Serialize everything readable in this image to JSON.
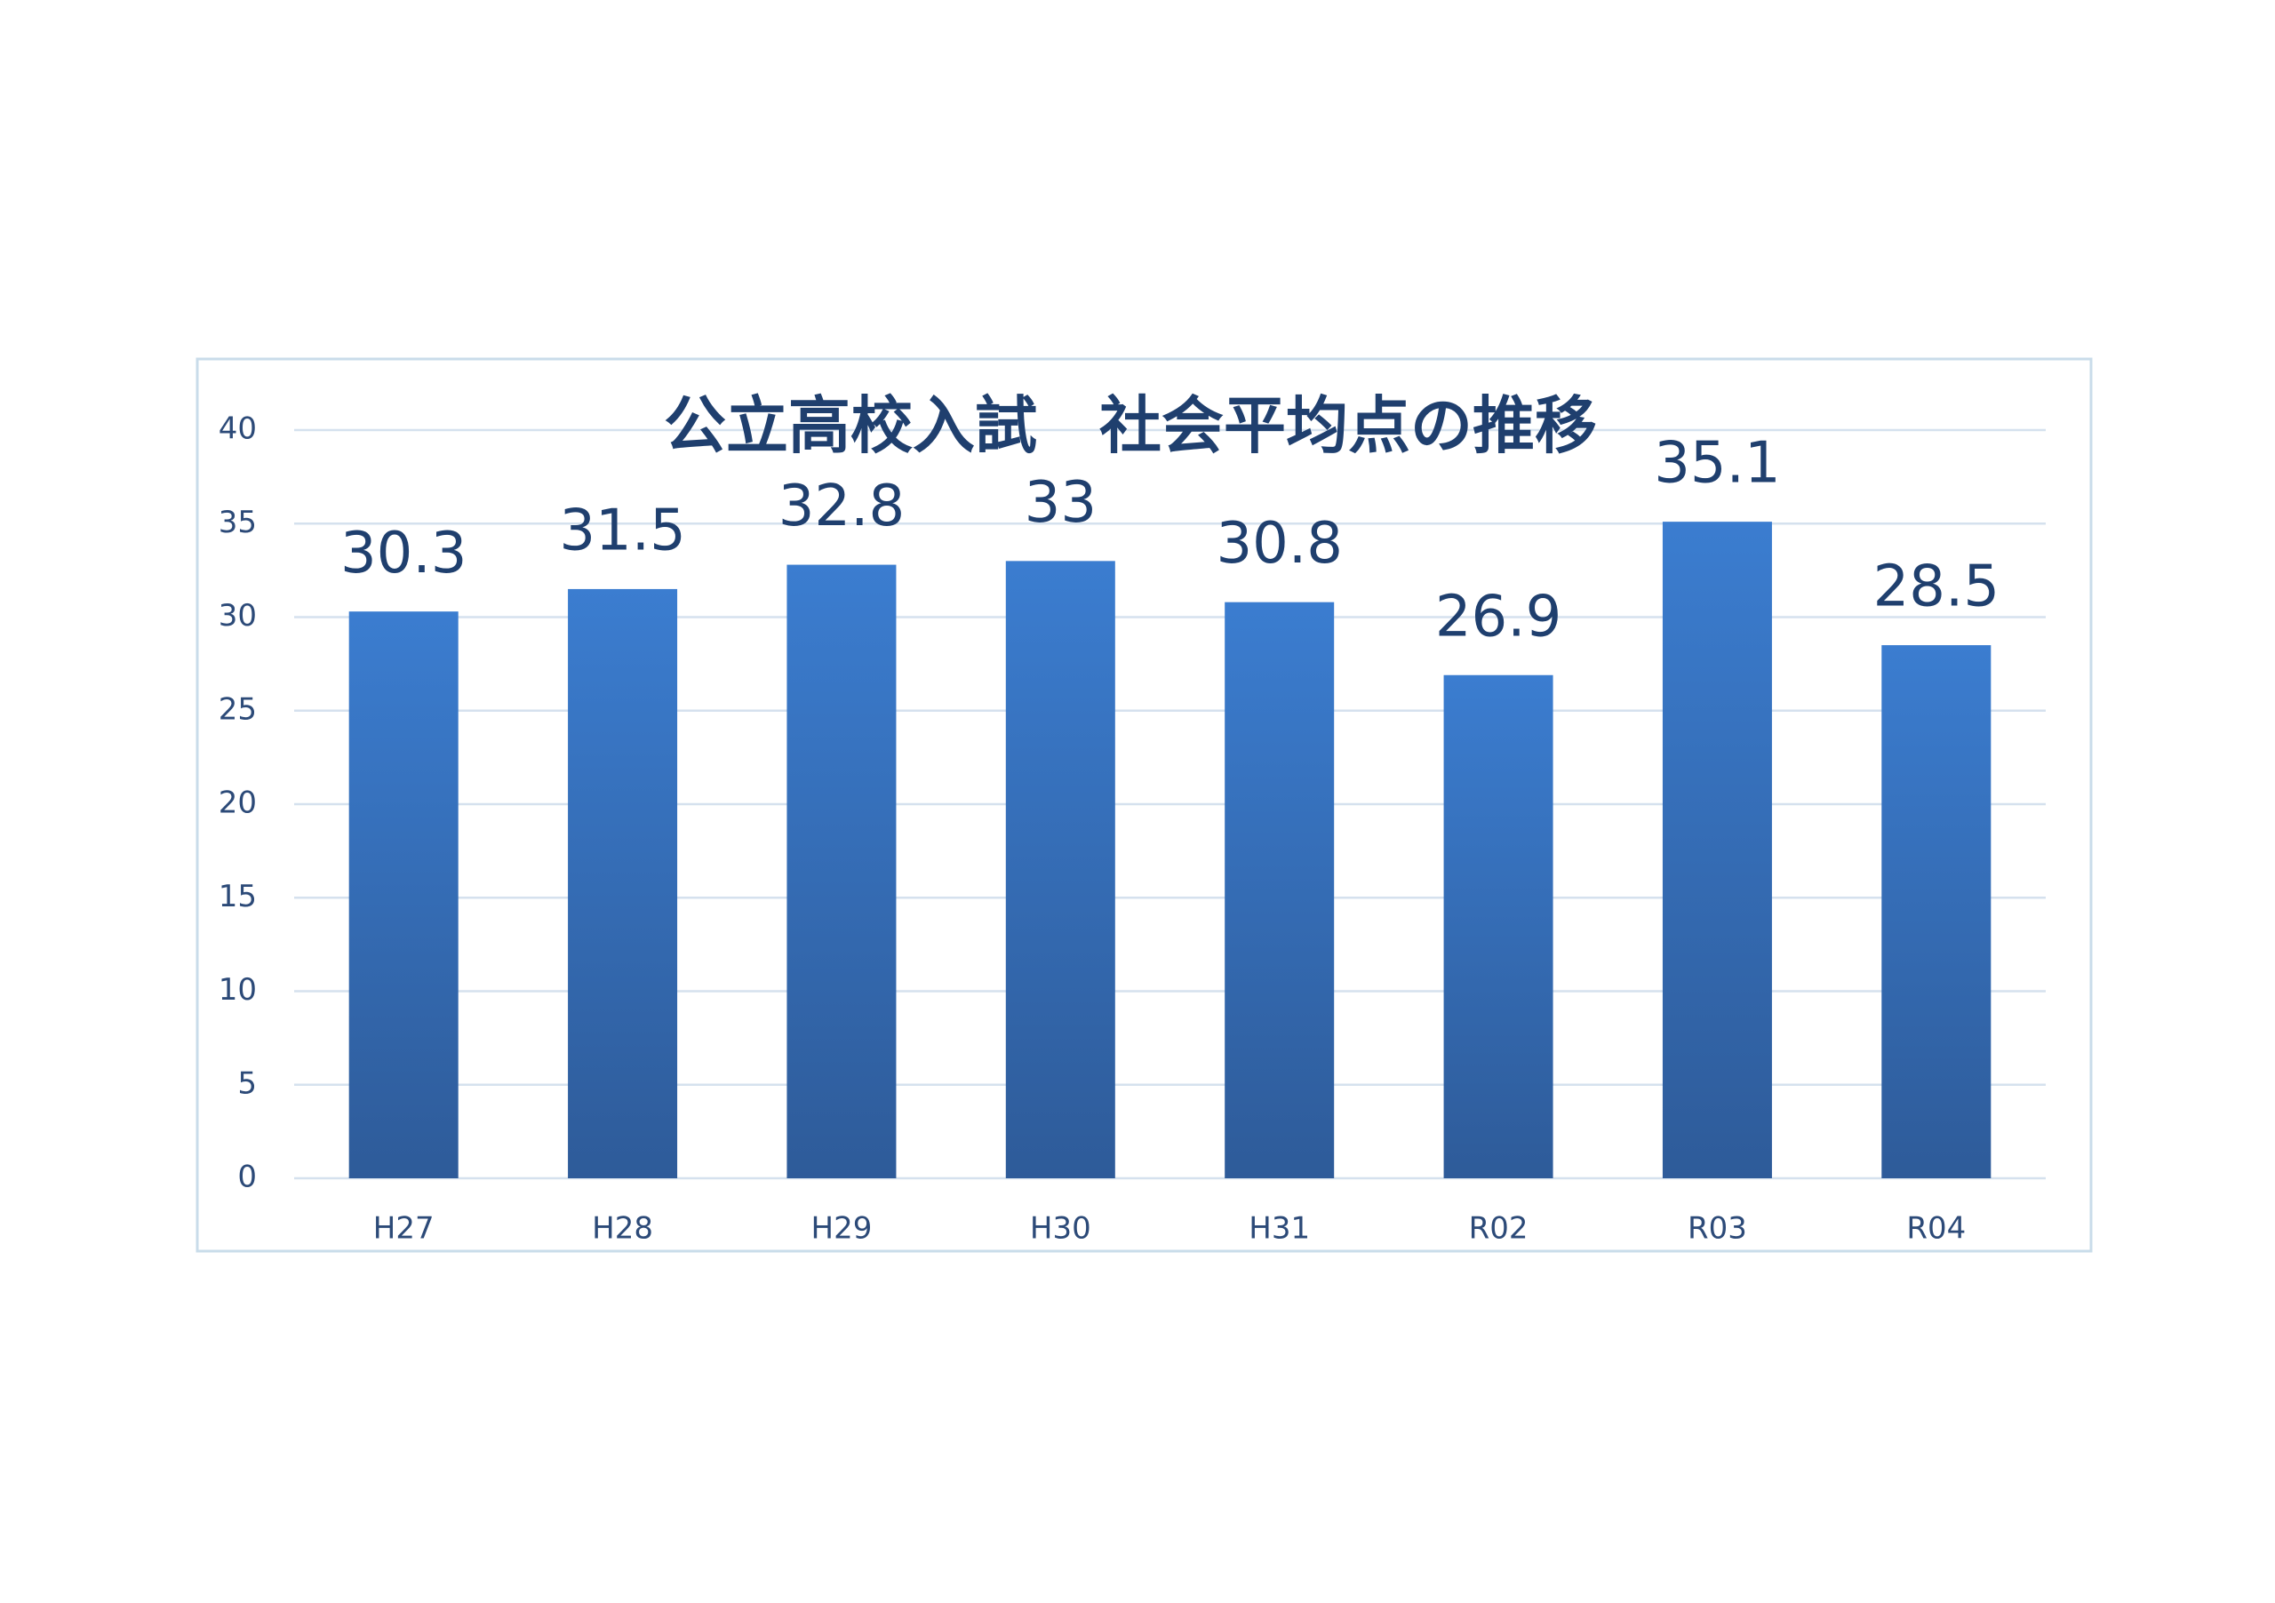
{
  "chart_data": {
    "type": "bar",
    "title": "公立高校入試　社会平均点の推移",
    "categories": [
      "H27",
      "H28",
      "H29",
      "H30",
      "H31",
      "R02",
      "R03",
      "R04"
    ],
    "values": [
      30.3,
      31.5,
      32.8,
      33,
      30.8,
      26.9,
      35.1,
      28.5
    ],
    "color": "#3b7dd0",
    "ylim": [
      0,
      40
    ],
    "yticks": [
      0,
      5,
      10,
      15,
      20,
      25,
      30,
      35,
      40
    ],
    "grid": true
  }
}
